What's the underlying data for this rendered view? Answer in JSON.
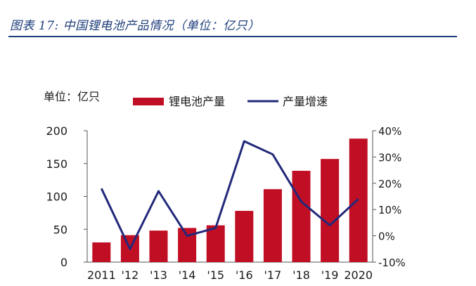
{
  "header": {
    "title": "图表 17:  中国锂电池产品情况（单位：亿只）"
  },
  "colors": {
    "title": "#1f3e7c",
    "bar": "#c00f24",
    "line": "#22287a",
    "axis": "#555555"
  },
  "chart_data": {
    "type": "bar",
    "unit_label": "单位：亿只",
    "categories": [
      "2011",
      "'12",
      "'13",
      "'14",
      "'15",
      "'16",
      "'17",
      "'18",
      "'19",
      "2020"
    ],
    "series": [
      {
        "name": "锂电池产量",
        "type": "bar",
        "axis": "left",
        "values": [
          30,
          41,
          48,
          52,
          56,
          78,
          111,
          139,
          157,
          188
        ]
      },
      {
        "name": "产量增速",
        "type": "line",
        "axis": "right",
        "values": [
          18,
          -5,
          17,
          0,
          3,
          36,
          31,
          13,
          4,
          14
        ]
      }
    ],
    "y_left": {
      "ylim": [
        0,
        200
      ],
      "ticks": [
        "0",
        "50",
        "100",
        "150",
        "200"
      ]
    },
    "y_right": {
      "ylim": [
        -10,
        40
      ],
      "ticks": [
        "-10%",
        "0%",
        "10%",
        "20%",
        "30%",
        "40%"
      ]
    },
    "legend_position": "top",
    "grid": false
  }
}
